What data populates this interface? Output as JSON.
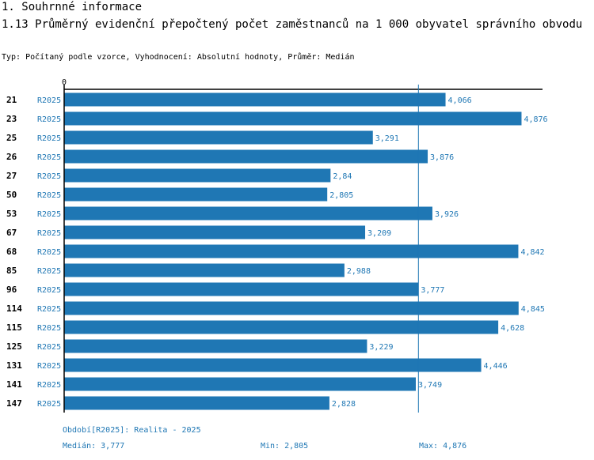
{
  "header": {
    "section": "1. Souhrnné informace",
    "title": "1.13 Průměrný evidenční přepočtený počet zaměstnanců na 1 000 obyvatel správního obvodu",
    "subtitle": "Typ: Počítaný podle vzorce, Vyhodnocení: Absolutní hodnoty, Průměr: Medián"
  },
  "colors": {
    "bar": "#1f77b4",
    "median_line": "#1f77b4",
    "axis": "#000000",
    "text_blue": "#1f77b4"
  },
  "chart_data": {
    "type": "bar",
    "orientation": "horizontal",
    "axis_zero_label": "0",
    "xlim": [
      0,
      5.1
    ],
    "median": 3.777,
    "categories": [
      "21",
      "23",
      "25",
      "26",
      "27",
      "50",
      "53",
      "67",
      "68",
      "85",
      "96",
      "114",
      "115",
      "125",
      "131",
      "141",
      "147"
    ],
    "series_label": "R2025",
    "values": [
      4.066,
      4.876,
      3.291,
      3.876,
      2.84,
      2.805,
      3.926,
      3.209,
      4.842,
      2.988,
      3.777,
      4.845,
      4.628,
      3.229,
      4.446,
      3.749,
      2.828
    ],
    "value_labels": [
      "4,066",
      "4,876",
      "3,291",
      "3,876",
      "2,84",
      "2,805",
      "3,926",
      "3,209",
      "4,842",
      "2,988",
      "3,777",
      "4,845",
      "4,628",
      "3,229",
      "4,446",
      "3,749",
      "2,828"
    ]
  },
  "footer": {
    "period": "Období[R2025]: Realita - 2025",
    "median": "Medián: 3,777",
    "min": "Min: 2,805",
    "max": "Max: 4,876"
  }
}
